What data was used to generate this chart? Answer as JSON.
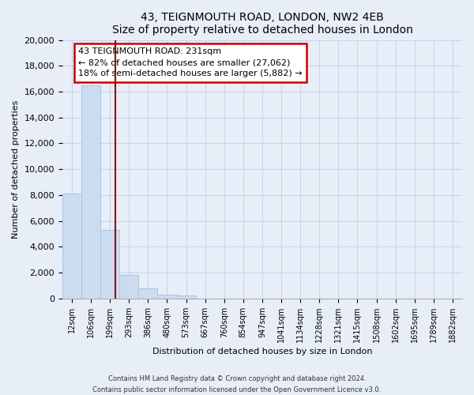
{
  "title": "43, TEIGNMOUTH ROAD, LONDON, NW2 4EB",
  "subtitle": "Size of property relative to detached houses in London",
  "xlabel": "Distribution of detached houses by size in London",
  "ylabel": "Number of detached properties",
  "bar_labels": [
    "12sqm",
    "106sqm",
    "199sqm",
    "293sqm",
    "386sqm",
    "480sqm",
    "573sqm",
    "667sqm",
    "760sqm",
    "854sqm",
    "947sqm",
    "1041sqm",
    "1134sqm",
    "1228sqm",
    "1321sqm",
    "1415sqm",
    "1508sqm",
    "1602sqm",
    "1695sqm",
    "1789sqm",
    "1882sqm"
  ],
  "bar_values": [
    8100,
    16500,
    5300,
    1800,
    800,
    300,
    250,
    0,
    0,
    0,
    0,
    0,
    0,
    0,
    0,
    0,
    0,
    0,
    0,
    0,
    0
  ],
  "bar_color": "#ccdcf0",
  "bar_edge_color": "#a8c4e0",
  "ylim": [
    0,
    20000
  ],
  "yticks": [
    0,
    2000,
    4000,
    6000,
    8000,
    10000,
    12000,
    14000,
    16000,
    18000,
    20000
  ],
  "vline_x": 2.3,
  "vline_color": "#990000",
  "annotation_title": "43 TEIGNMOUTH ROAD: 231sqm",
  "annotation_line1": "← 82% of detached houses are smaller (27,062)",
  "annotation_line2": "18% of semi-detached houses are larger (5,882) →",
  "annotation_box_facecolor": "#ffffff",
  "annotation_box_edgecolor": "#cc0000",
  "footer_line1": "Contains HM Land Registry data © Crown copyright and database right 2024.",
  "footer_line2": "Contains public sector information licensed under the Open Government Licence v3.0.",
  "bg_color": "#e8eef8",
  "plot_bg_color": "#e8eef8",
  "grid_color": "#c8d4e8"
}
